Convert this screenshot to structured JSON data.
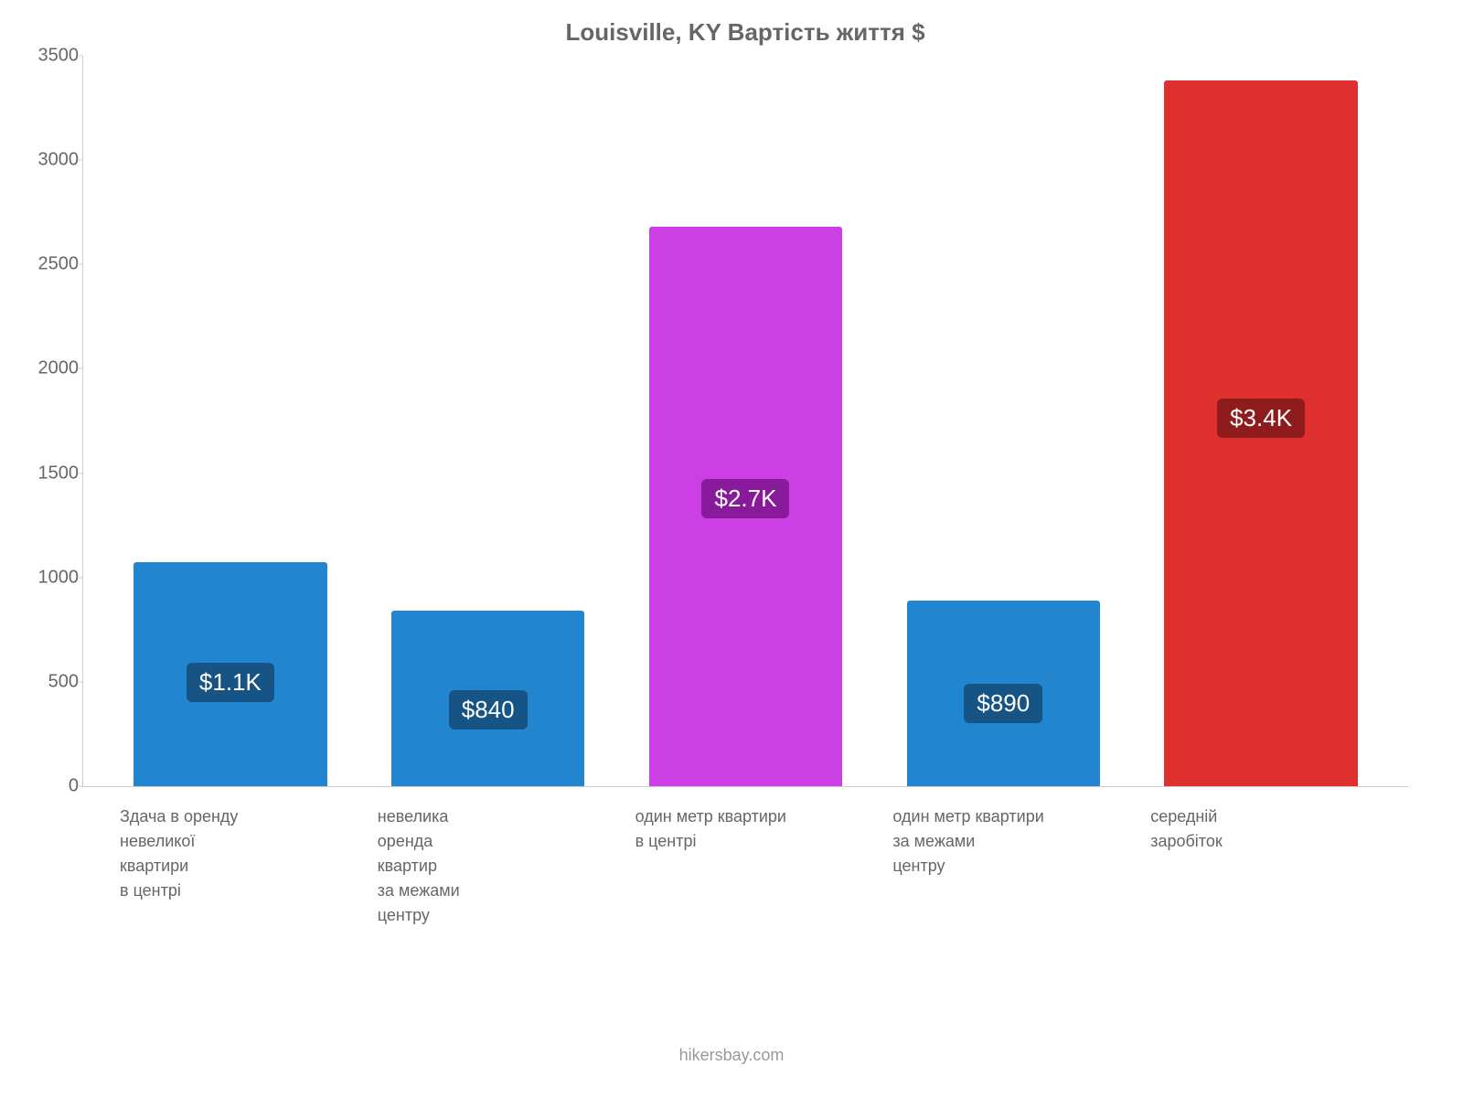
{
  "chart": {
    "type": "bar",
    "title": "Louisville, KY Вартість життя $",
    "title_color": "#666666",
    "title_fontsize": 26,
    "background_color": "#ffffff",
    "axis_color": "#cccccc",
    "tick_label_color": "#666666",
    "tick_label_fontsize": 20,
    "x_label_color": "#666666",
    "x_label_fontsize": 18,
    "ylim": [
      0,
      3500
    ],
    "ytick_step": 500,
    "yticks": [
      0,
      500,
      1000,
      1500,
      2000,
      2500,
      3000,
      3500
    ],
    "bar_width_pct": 75,
    "bars": [
      {
        "category_lines": [
          "Здача в оренду",
          "невеликої",
          "квартири",
          "в центрі"
        ],
        "value": 1075,
        "display_label": "$1.1K",
        "bar_color": "#2185d0",
        "label_bg_color": "#155484",
        "label_text_color": "#ffffff"
      },
      {
        "category_lines": [
          "невелика",
          "оренда",
          "квартир",
          "за межами",
          "центру"
        ],
        "value": 840,
        "display_label": "$840",
        "bar_color": "#2185d0",
        "label_bg_color": "#155484",
        "label_text_color": "#ffffff"
      },
      {
        "category_lines": [
          "один метр квартири",
          "в центрі"
        ],
        "value": 2680,
        "display_label": "$2.7K",
        "bar_color": "#cb3fe4",
        "label_bg_color": "#881a9b",
        "label_text_color": "#ffffff"
      },
      {
        "category_lines": [
          "один метр квартири",
          "за межами",
          "центру"
        ],
        "value": 890,
        "display_label": "$890",
        "bar_color": "#2185d0",
        "label_bg_color": "#155484",
        "label_text_color": "#ffffff"
      },
      {
        "category_lines": [
          "середній",
          "заробіток"
        ],
        "value": 3380,
        "display_label": "$3.4K",
        "bar_color": "#e02f2f",
        "label_bg_color": "#8f1c1c",
        "label_text_color": "#ffffff"
      }
    ],
    "credit": "hikersbay.com",
    "credit_color": "#999999",
    "credit_fontsize": 18
  }
}
